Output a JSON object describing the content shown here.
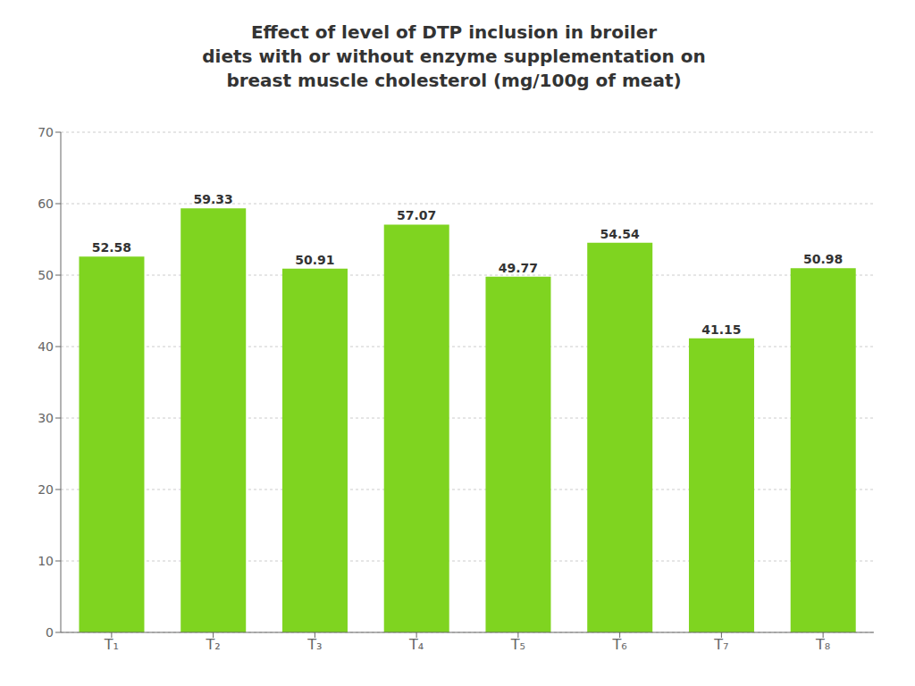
{
  "chart_data": {
    "type": "bar",
    "title": "Effect of level of DTP inclusion in broiler\ndiets with or without enzyme supplementation on\nbreast muscle cholesterol (mg/100g of meat)",
    "categories": [
      "T₁",
      "T₂",
      "T₃",
      "T₄",
      "T₅",
      "T₆",
      "T₇",
      "T₈"
    ],
    "values": [
      52.58,
      59.33,
      50.91,
      57.07,
      49.77,
      54.54,
      41.15,
      50.98
    ],
    "color": "#7FD420",
    "ylim": [
      0,
      70
    ],
    "yticks": [
      0,
      10,
      20,
      30,
      40,
      50,
      60,
      70
    ],
    "grid": true,
    "data_labels": true
  }
}
